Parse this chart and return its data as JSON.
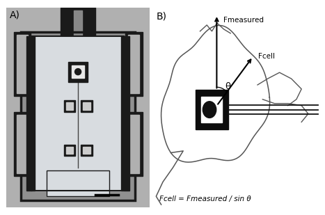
{
  "fig_width": 4.67,
  "fig_height": 3.09,
  "dpi": 100,
  "bg_color": "#ffffff",
  "panel_A_label": "A)",
  "panel_B_label": "B)",
  "label_fontsize": 10,
  "fmeasured_label": "Fmeasured",
  "fcell_label": "Fcell",
  "theta_label": "θ",
  "formula_label": "Fcell = Fmeasured / sin θ",
  "annotation_fontsize": 7.5,
  "formula_fontsize": 7.5,
  "outer_bg": "#b0b0b0",
  "mid_bg": "#909090",
  "plate_color": "#d8dce0",
  "dark_color": "#1a1a1a",
  "arm_inner_color": "#aaaaaa",
  "cell_line_color": "#555555"
}
